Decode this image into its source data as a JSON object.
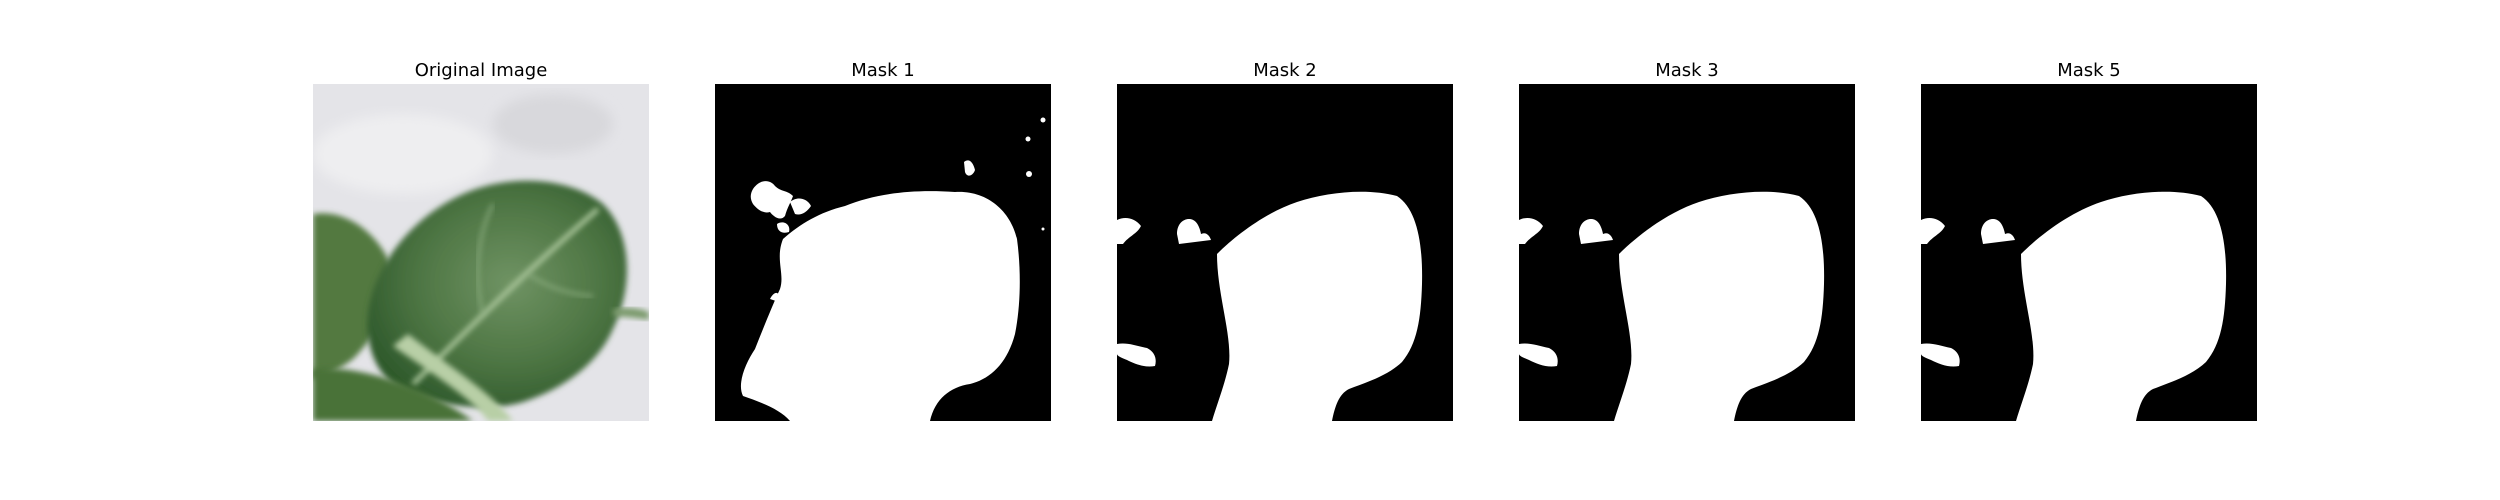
{
  "figure": {
    "panels": [
      {
        "title": "Original Image",
        "content": "photo"
      },
      {
        "title": "Mask 1",
        "content": "mask"
      },
      {
        "title": "Mask 2",
        "content": "mask"
      },
      {
        "title": "Mask 3",
        "content": "mask"
      },
      {
        "title": "Mask 5",
        "content": "mask"
      }
    ]
  },
  "colors": {
    "mask_background": "#000000",
    "mask_foreground": "#ffffff",
    "photo_background": "#e6e6e9",
    "leaf": "#4f7a45"
  }
}
